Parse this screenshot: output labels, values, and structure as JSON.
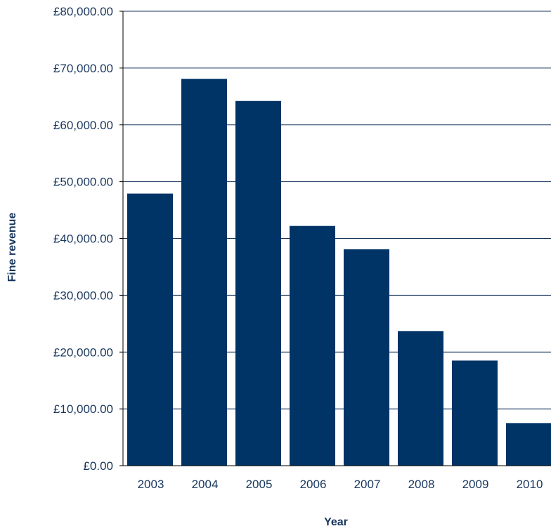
{
  "colors": {
    "bar": "#003366",
    "grid": "#17365d",
    "axis": "#000000",
    "text": "#17365d"
  },
  "chart_data": {
    "type": "bar",
    "title": "",
    "xlabel": "Year",
    "ylabel": "Fine revenue",
    "categories": [
      "2003",
      "2004",
      "2005",
      "2006",
      "2007",
      "2008",
      "2009",
      "2010"
    ],
    "values": [
      47900,
      68100,
      64200,
      42200,
      38100,
      23700,
      18500,
      7500
    ],
    "ylim": [
      0,
      80000
    ],
    "y_ticks": [
      0,
      10000,
      20000,
      30000,
      40000,
      50000,
      60000,
      70000,
      80000
    ],
    "y_tick_labels": [
      "£0.00",
      "£10,000.00",
      "£20,000.00",
      "£30,000.00",
      "£40,000.00",
      "£50,000.00",
      "£60,000.00",
      "£70,000.00",
      "£80,000.00"
    ],
    "grid": true,
    "legend": "none"
  }
}
